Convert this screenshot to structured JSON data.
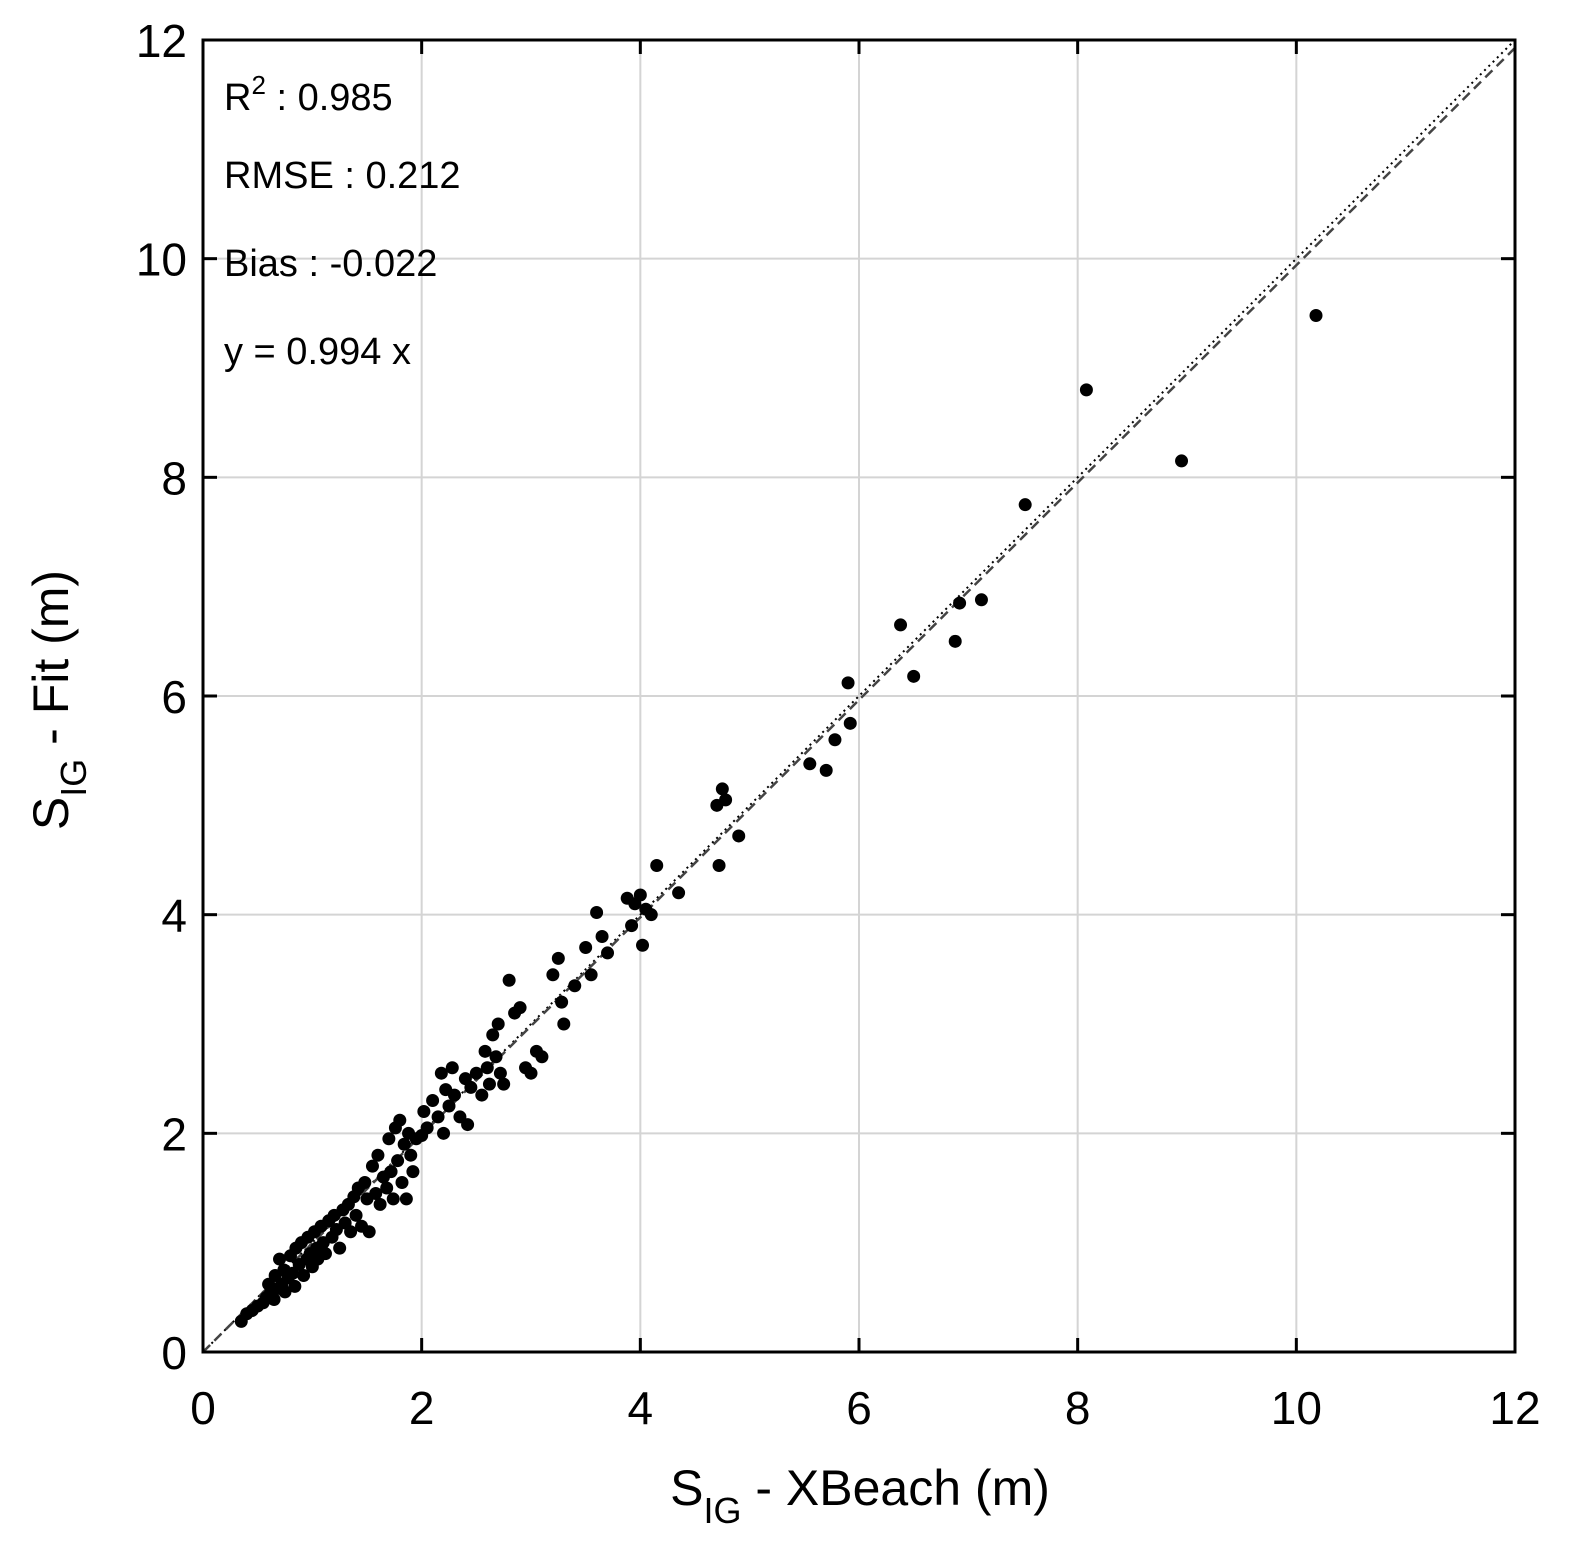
{
  "chart_data": {
    "type": "scatter",
    "xlabel": {
      "main": "S",
      "sub": "IG",
      "rest": " - XBeach (m)"
    },
    "ylabel": {
      "main": "S",
      "sub": "IG",
      "rest": " - Fit (m)"
    },
    "xlim": [
      0,
      12
    ],
    "ylim": [
      0,
      12
    ],
    "xticks": [
      0,
      2,
      4,
      6,
      8,
      10,
      12
    ],
    "yticks": [
      0,
      2,
      4,
      6,
      8,
      10,
      12
    ],
    "grid": true,
    "annotations": {
      "r2_label": "R",
      "r2_sup": "2",
      "r2_value": " : 0.985",
      "rmse": "RMSE : 0.212",
      "bias": "Bias : -0.022",
      "fit_eq": "y = 0.994 x"
    },
    "fit_slope": 0.994,
    "reference_line": [
      [
        0,
        0
      ],
      [
        12,
        12
      ]
    ],
    "points": [
      [
        0.35,
        0.28
      ],
      [
        0.4,
        0.35
      ],
      [
        0.45,
        0.38
      ],
      [
        0.5,
        0.42
      ],
      [
        0.55,
        0.45
      ],
      [
        0.58,
        0.5
      ],
      [
        0.6,
        0.62
      ],
      [
        0.62,
        0.55
      ],
      [
        0.65,
        0.48
      ],
      [
        0.66,
        0.7
      ],
      [
        0.68,
        0.58
      ],
      [
        0.7,
        0.85
      ],
      [
        0.72,
        0.62
      ],
      [
        0.74,
        0.75
      ],
      [
        0.75,
        0.55
      ],
      [
        0.78,
        0.68
      ],
      [
        0.8,
        0.88
      ],
      [
        0.82,
        0.72
      ],
      [
        0.84,
        0.6
      ],
      [
        0.85,
        0.95
      ],
      [
        0.88,
        0.8
      ],
      [
        0.9,
        1.0
      ],
      [
        0.92,
        0.7
      ],
      [
        0.95,
        0.85
      ],
      [
        0.96,
        1.05
      ],
      [
        0.98,
        0.9
      ],
      [
        1.0,
        0.78
      ],
      [
        1.02,
        1.1
      ],
      [
        1.04,
        0.95
      ],
      [
        1.05,
        0.85
      ],
      [
        1.08,
        1.15
      ],
      [
        1.1,
        1.0
      ],
      [
        1.12,
        0.9
      ],
      [
        1.15,
        1.2
      ],
      [
        1.18,
        1.05
      ],
      [
        1.2,
        1.25
      ],
      [
        1.22,
        1.12
      ],
      [
        1.25,
        0.95
      ],
      [
        1.28,
        1.3
      ],
      [
        1.3,
        1.18
      ],
      [
        1.33,
        1.35
      ],
      [
        1.35,
        1.1
      ],
      [
        1.38,
        1.42
      ],
      [
        1.4,
        1.25
      ],
      [
        1.42,
        1.5
      ],
      [
        1.45,
        1.15
      ],
      [
        1.48,
        1.55
      ],
      [
        1.5,
        1.4
      ],
      [
        1.52,
        1.1
      ],
      [
        1.55,
        1.7
      ],
      [
        1.58,
        1.45
      ],
      [
        1.6,
        1.8
      ],
      [
        1.62,
        1.35
      ],
      [
        1.65,
        1.6
      ],
      [
        1.68,
        1.5
      ],
      [
        1.7,
        1.95
      ],
      [
        1.72,
        1.65
      ],
      [
        1.74,
        1.4
      ],
      [
        1.76,
        2.05
      ],
      [
        1.78,
        1.75
      ],
      [
        1.8,
        2.12
      ],
      [
        1.82,
        1.55
      ],
      [
        1.84,
        1.9
      ],
      [
        1.86,
        1.4
      ],
      [
        1.88,
        2.0
      ],
      [
        1.9,
        1.8
      ],
      [
        1.92,
        1.65
      ],
      [
        1.95,
        1.95
      ],
      [
        2.0,
        1.98
      ],
      [
        2.02,
        2.2
      ],
      [
        2.05,
        2.05
      ],
      [
        2.1,
        2.3
      ],
      [
        2.15,
        2.15
      ],
      [
        2.18,
        2.55
      ],
      [
        2.2,
        2.0
      ],
      [
        2.22,
        2.4
      ],
      [
        2.25,
        2.25
      ],
      [
        2.28,
        2.6
      ],
      [
        2.3,
        2.35
      ],
      [
        2.35,
        2.15
      ],
      [
        2.4,
        2.5
      ],
      [
        2.42,
        2.08
      ],
      [
        2.45,
        2.42
      ],
      [
        2.5,
        2.55
      ],
      [
        2.55,
        2.35
      ],
      [
        2.58,
        2.75
      ],
      [
        2.6,
        2.6
      ],
      [
        2.62,
        2.45
      ],
      [
        2.65,
        2.9
      ],
      [
        2.68,
        2.7
      ],
      [
        2.7,
        3.0
      ],
      [
        2.72,
        2.55
      ],
      [
        2.75,
        2.45
      ],
      [
        2.8,
        3.4
      ],
      [
        2.85,
        3.1
      ],
      [
        2.9,
        3.15
      ],
      [
        2.95,
        2.6
      ],
      [
        3.0,
        2.55
      ],
      [
        3.05,
        2.75
      ],
      [
        3.1,
        2.7
      ],
      [
        3.2,
        3.45
      ],
      [
        3.25,
        3.6
      ],
      [
        3.28,
        3.2
      ],
      [
        3.3,
        3.0
      ],
      [
        3.4,
        3.35
      ],
      [
        3.5,
        3.7
      ],
      [
        3.55,
        3.45
      ],
      [
        3.6,
        4.02
      ],
      [
        3.65,
        3.8
      ],
      [
        3.7,
        3.65
      ],
      [
        3.88,
        4.15
      ],
      [
        3.92,
        3.9
      ],
      [
        3.95,
        4.1
      ],
      [
        4.0,
        4.18
      ],
      [
        4.02,
        3.72
      ],
      [
        4.05,
        4.05
      ],
      [
        4.1,
        4.0
      ],
      [
        4.15,
        4.45
      ],
      [
        4.35,
        4.2
      ],
      [
        4.7,
        5.0
      ],
      [
        4.75,
        5.15
      ],
      [
        4.78,
        5.05
      ],
      [
        4.72,
        4.45
      ],
      [
        4.9,
        4.72
      ],
      [
        5.55,
        5.38
      ],
      [
        5.7,
        5.32
      ],
      [
        5.78,
        5.6
      ],
      [
        5.9,
        6.12
      ],
      [
        5.92,
        5.75
      ],
      [
        6.38,
        6.65
      ],
      [
        6.5,
        6.18
      ],
      [
        6.88,
        6.5
      ],
      [
        6.92,
        6.85
      ],
      [
        7.12,
        6.88
      ],
      [
        7.52,
        7.75
      ],
      [
        8.08,
        8.8
      ],
      [
        8.95,
        8.15
      ],
      [
        10.18,
        9.48
      ]
    ]
  }
}
